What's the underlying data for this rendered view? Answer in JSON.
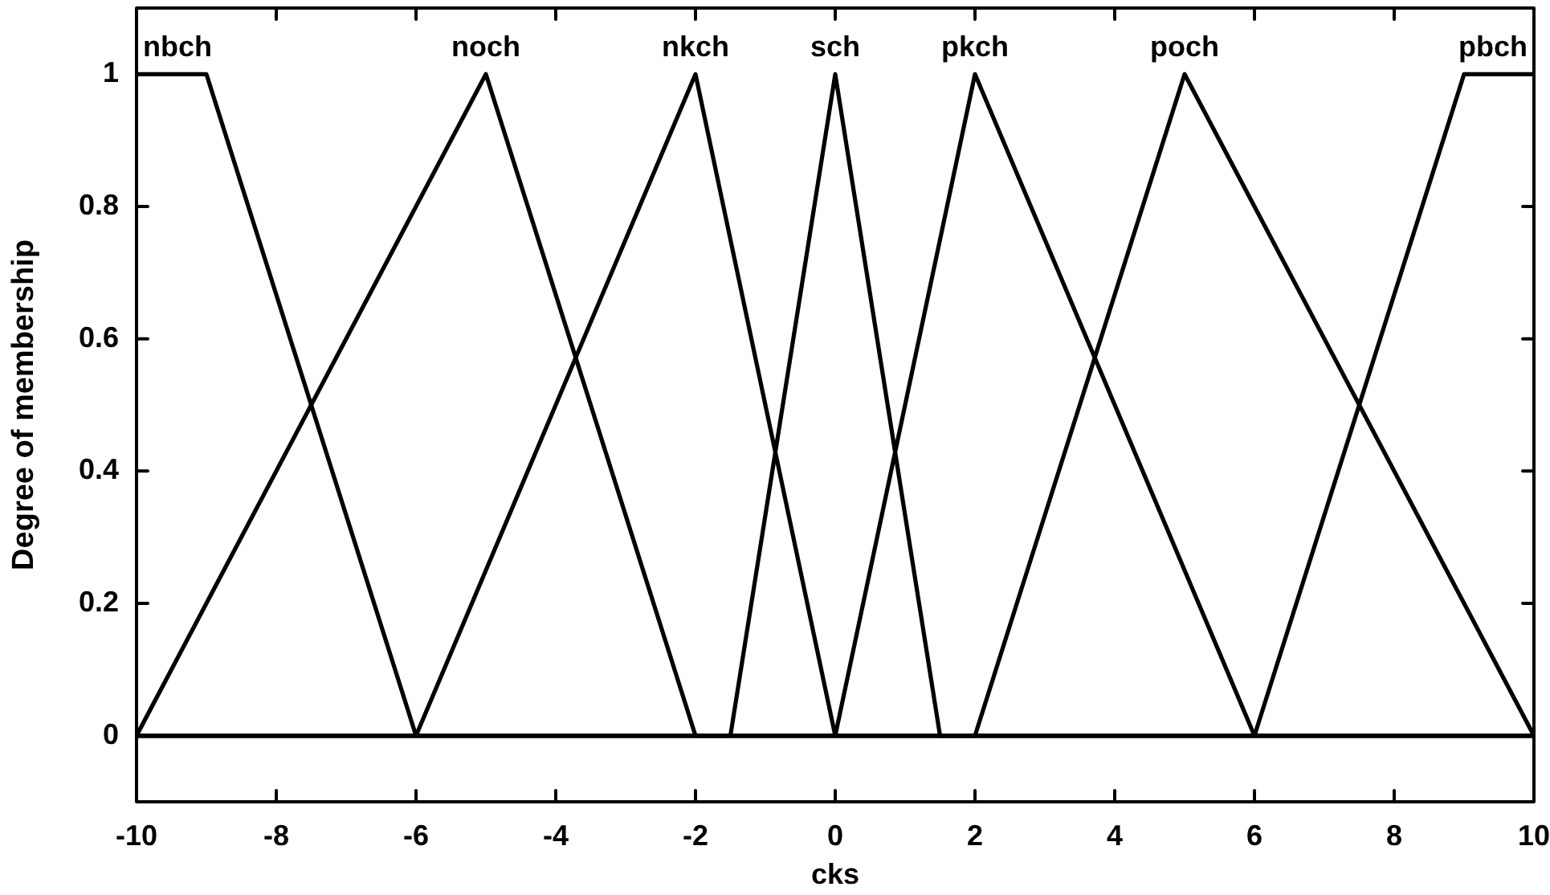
{
  "chart_data": {
    "type": "line",
    "xlabel": "cks",
    "ylabel": "Degree of membership",
    "xlim": [
      -10,
      10
    ],
    "xticks": [
      -10,
      -8,
      -6,
      -4,
      -2,
      0,
      2,
      4,
      6,
      8,
      10
    ],
    "ylim": [
      -0.1,
      1.1
    ],
    "yticks": [
      0,
      0.2,
      0.4,
      0.6,
      0.8,
      1
    ],
    "marker": "none",
    "series": [
      {
        "name": "nbch",
        "color": "#000000",
        "x": [
          -10,
          -9,
          -6,
          10
        ],
        "values": [
          1,
          1,
          0,
          0
        ]
      },
      {
        "name": "noch",
        "color": "#000000",
        "x": [
          -10,
          -5,
          -2,
          10
        ],
        "values": [
          0,
          1,
          0,
          0
        ]
      },
      {
        "name": "nkch",
        "color": "#000000",
        "x": [
          -10,
          -6,
          -2,
          0,
          10
        ],
        "values": [
          0,
          0,
          1,
          0,
          0
        ]
      },
      {
        "name": "sch",
        "color": "#000000",
        "x": [
          -10,
          -1.5,
          0,
          1.5,
          10
        ],
        "values": [
          0,
          0,
          1,
          0,
          0
        ]
      },
      {
        "name": "pkch",
        "color": "#000000",
        "x": [
          -10,
          0,
          2,
          6,
          10
        ],
        "values": [
          0,
          0,
          1,
          0,
          0
        ]
      },
      {
        "name": "poch",
        "color": "#000000",
        "x": [
          -10,
          2,
          5,
          10
        ],
        "values": [
          0,
          0,
          1,
          0
        ]
      },
      {
        "name": "pbch",
        "color": "#000000",
        "x": [
          -10,
          6,
          9,
          10
        ],
        "values": [
          0,
          0,
          1,
          1
        ]
      }
    ]
  }
}
